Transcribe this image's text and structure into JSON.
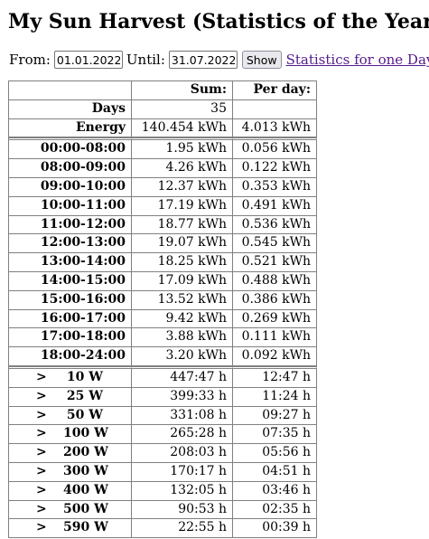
{
  "title": "My Sun Harvest (Statistics of the Year)",
  "form": {
    "from_label": "From:",
    "from_value": "01.01.2022",
    "until_label": "Until:",
    "until_value": "31.07.2022",
    "show_label": "Show",
    "day_link": "Statistics for one Day"
  },
  "table": {
    "header": {
      "col1": "",
      "sum": "Sum:",
      "per_day": "Per day:"
    },
    "days": {
      "label": "Days",
      "sum": "35",
      "per_day": ""
    },
    "energy": {
      "label": "Energy",
      "sum": "140.454 kWh",
      "per_day": "4.013 kWh"
    },
    "hours": [
      {
        "label": "00:00-08:00",
        "sum": "1.95 kWh",
        "per_day": "0.056 kWh"
      },
      {
        "label": "08:00-09:00",
        "sum": "4.26 kWh",
        "per_day": "0.122 kWh"
      },
      {
        "label": "09:00-10:00",
        "sum": "12.37 kWh",
        "per_day": "0.353 kWh"
      },
      {
        "label": "10:00-11:00",
        "sum": "17.19 kWh",
        "per_day": "0.491 kWh"
      },
      {
        "label": "11:00-12:00",
        "sum": "18.77 kWh",
        "per_day": "0.536 kWh"
      },
      {
        "label": "12:00-13:00",
        "sum": "19.07 kWh",
        "per_day": "0.545 kWh"
      },
      {
        "label": "13:00-14:00",
        "sum": "18.25 kWh",
        "per_day": "0.521 kWh"
      },
      {
        "label": "14:00-15:00",
        "sum": "17.09 kWh",
        "per_day": "0.488 kWh"
      },
      {
        "label": "15:00-16:00",
        "sum": "13.52 kWh",
        "per_day": "0.386 kWh"
      },
      {
        "label": "16:00-17:00",
        "sum": "9.42 kWh",
        "per_day": "0.269 kWh"
      },
      {
        "label": "17:00-18:00",
        "sum": "3.88 kWh",
        "per_day": "0.111 kWh"
      },
      {
        "label": "18:00-24:00",
        "sum": "3.20 kWh",
        "per_day": "0.092 kWh"
      }
    ],
    "thresholds": [
      {
        "gt": ">",
        "power": "10 W",
        "sum": "447:47 h",
        "per_day": "12:47 h"
      },
      {
        "gt": ">",
        "power": "25 W",
        "sum": "399:33 h",
        "per_day": "11:24 h"
      },
      {
        "gt": ">",
        "power": "50 W",
        "sum": "331:08 h",
        "per_day": "09:27 h"
      },
      {
        "gt": ">",
        "power": "100 W",
        "sum": "265:28 h",
        "per_day": "07:35 h"
      },
      {
        "gt": ">",
        "power": "200 W",
        "sum": "208:03 h",
        "per_day": "05:56 h"
      },
      {
        "gt": ">",
        "power": "300 W",
        "sum": "170:17 h",
        "per_day": "04:51 h"
      },
      {
        "gt": ">",
        "power": "400 W",
        "sum": "132:05 h",
        "per_day": "03:46 h"
      },
      {
        "gt": ">",
        "power": "500 W",
        "sum": "90:53 h",
        "per_day": "02:35 h"
      },
      {
        "gt": ">",
        "power": "590 W",
        "sum": "22:55 h",
        "per_day": "00:39 h"
      }
    ]
  }
}
